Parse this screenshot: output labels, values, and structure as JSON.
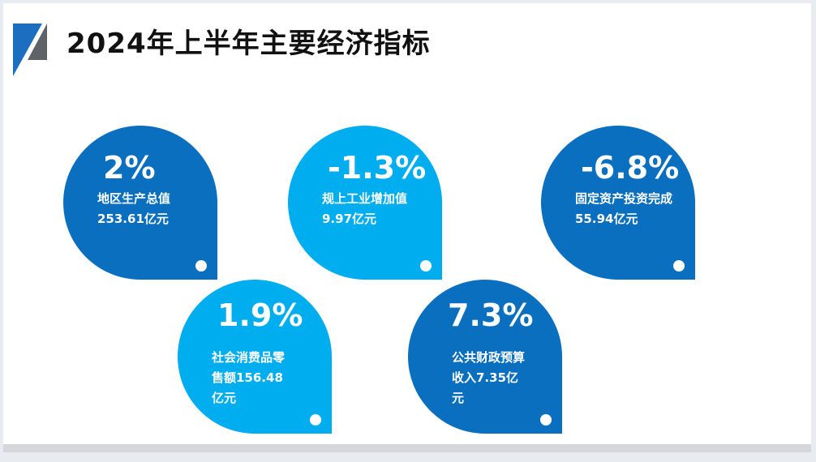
{
  "header": {
    "title": "2024年上半年主要经济指标"
  },
  "cards": [
    {
      "percent": "2%",
      "label": "地区生产总值",
      "value": "253.61亿元"
    },
    {
      "percent": "-1.3%",
      "label": "规上工业增加值",
      "value": "9.97亿元"
    },
    {
      "percent": "-6.8%",
      "label": "固定资产投资完成",
      "value": "55.94亿元"
    },
    {
      "percent": "1.9%",
      "label": "社会消费品零售额156.48亿元"
    },
    {
      "percent": "7.3%",
      "label": "公共财政预算收入7.35亿元"
    }
  ]
}
